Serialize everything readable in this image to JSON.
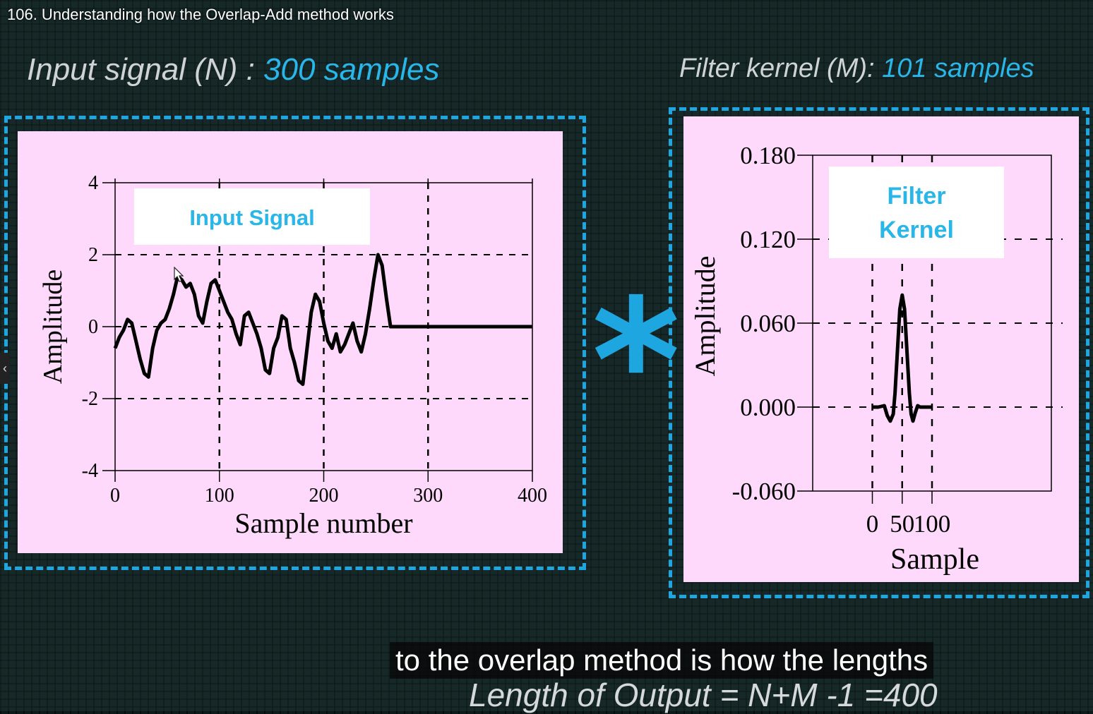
{
  "video": {
    "title": "106. Understanding how the Overlap-Add method works"
  },
  "headings": {
    "input_label": "Input signal (N) :",
    "input_value": "300 samples",
    "kernel_label": "Filter kernel (M):",
    "kernel_value": "101 samples"
  },
  "operator": {
    "symbol": "*",
    "icon": "convolution-asterisk-icon"
  },
  "subtitle": {
    "text": "to the overlap method is how the lengths"
  },
  "formula": {
    "text": "Length of Output = N+M -1 =400"
  },
  "colors": {
    "accent": "#1ea6e0",
    "panel": "#ffd9fb",
    "label_box_text": "#29b6e8"
  },
  "chart_data": [
    {
      "type": "line",
      "label_box": "Input Signal",
      "xlabel": "Sample number",
      "ylabel": "Amplitude",
      "xlim": [
        0,
        400
      ],
      "ylim": [
        -4,
        4
      ],
      "xticks": [
        "0",
        "100",
        "200",
        "300",
        "400"
      ],
      "yticks": [
        "4",
        "2",
        "0",
        "-2",
        "-4"
      ],
      "grid": "dashed",
      "series": [
        {
          "x": [
            0,
            4,
            8,
            12,
            16,
            20,
            24,
            28,
            32,
            36,
            40,
            44,
            48,
            52,
            56,
            60,
            64,
            68,
            72,
            76,
            80,
            84,
            88,
            92,
            96,
            100,
            104,
            108,
            112,
            116,
            120,
            124,
            128,
            132,
            136,
            140,
            144,
            148,
            152,
            156,
            160,
            164,
            168,
            172,
            176,
            180,
            184,
            188,
            192,
            196,
            200,
            204,
            208,
            212,
            216,
            220,
            224,
            228,
            232,
            236,
            240,
            244,
            248,
            252,
            256,
            260,
            264,
            268,
            272,
            276,
            280,
            284,
            288,
            292,
            296,
            298,
            299,
            300,
            400
          ],
          "y": [
            -0.6,
            -0.3,
            -0.1,
            0.2,
            0.1,
            -0.4,
            -0.9,
            -1.3,
            -1.4,
            -0.6,
            -0.1,
            0.1,
            0.2,
            0.5,
            0.9,
            1.4,
            1.3,
            1.1,
            1.2,
            0.9,
            0.3,
            0.1,
            0.7,
            1.2,
            1.3,
            1.0,
            0.7,
            0.4,
            0.2,
            -0.2,
            -0.5,
            0.3,
            0.4,
            0.1,
            -0.2,
            -0.6,
            -1.2,
            -1.3,
            -0.6,
            -0.3,
            0.3,
            0.2,
            -0.6,
            -1.0,
            -1.5,
            -1.6,
            -0.6,
            0.4,
            0.9,
            0.7,
            0.1,
            -0.4,
            -0.6,
            -0.2,
            -0.7,
            -0.5,
            -0.2,
            0.1,
            -0.4,
            -0.7,
            -0.2,
            0.5,
            1.3,
            2.0,
            1.7,
            0.8,
            0.0,
            0.0,
            0.0,
            0.0,
            0.0,
            0.0,
            0.0,
            0.0,
            0.0,
            0.0,
            0.0,
            0.0,
            0.0
          ]
        }
      ]
    },
    {
      "type": "line",
      "label_box": "Filter\nKernel",
      "xlabel": "Sample",
      "ylabel": "Amplitude",
      "xlim": [
        -100,
        300
      ],
      "ylim": [
        -0.06,
        0.18
      ],
      "xticks": [
        "0",
        "50",
        "100"
      ],
      "yticks": [
        "0.180",
        "0.120",
        "0.060",
        "0.000",
        "-0.060"
      ],
      "grid": "dashed",
      "series": [
        {
          "x": [
            0,
            10,
            20,
            25,
            30,
            35,
            38,
            42,
            46,
            50,
            54,
            58,
            62,
            65,
            68,
            72,
            76,
            80,
            90,
            100
          ],
          "y": [
            0.0,
            0.0,
            0.001,
            -0.006,
            -0.01,
            -0.005,
            0.01,
            0.04,
            0.07,
            0.08,
            0.07,
            0.04,
            0.01,
            -0.005,
            -0.01,
            -0.004,
            0.001,
            0.0,
            0.0,
            0.0
          ]
        }
      ]
    }
  ]
}
